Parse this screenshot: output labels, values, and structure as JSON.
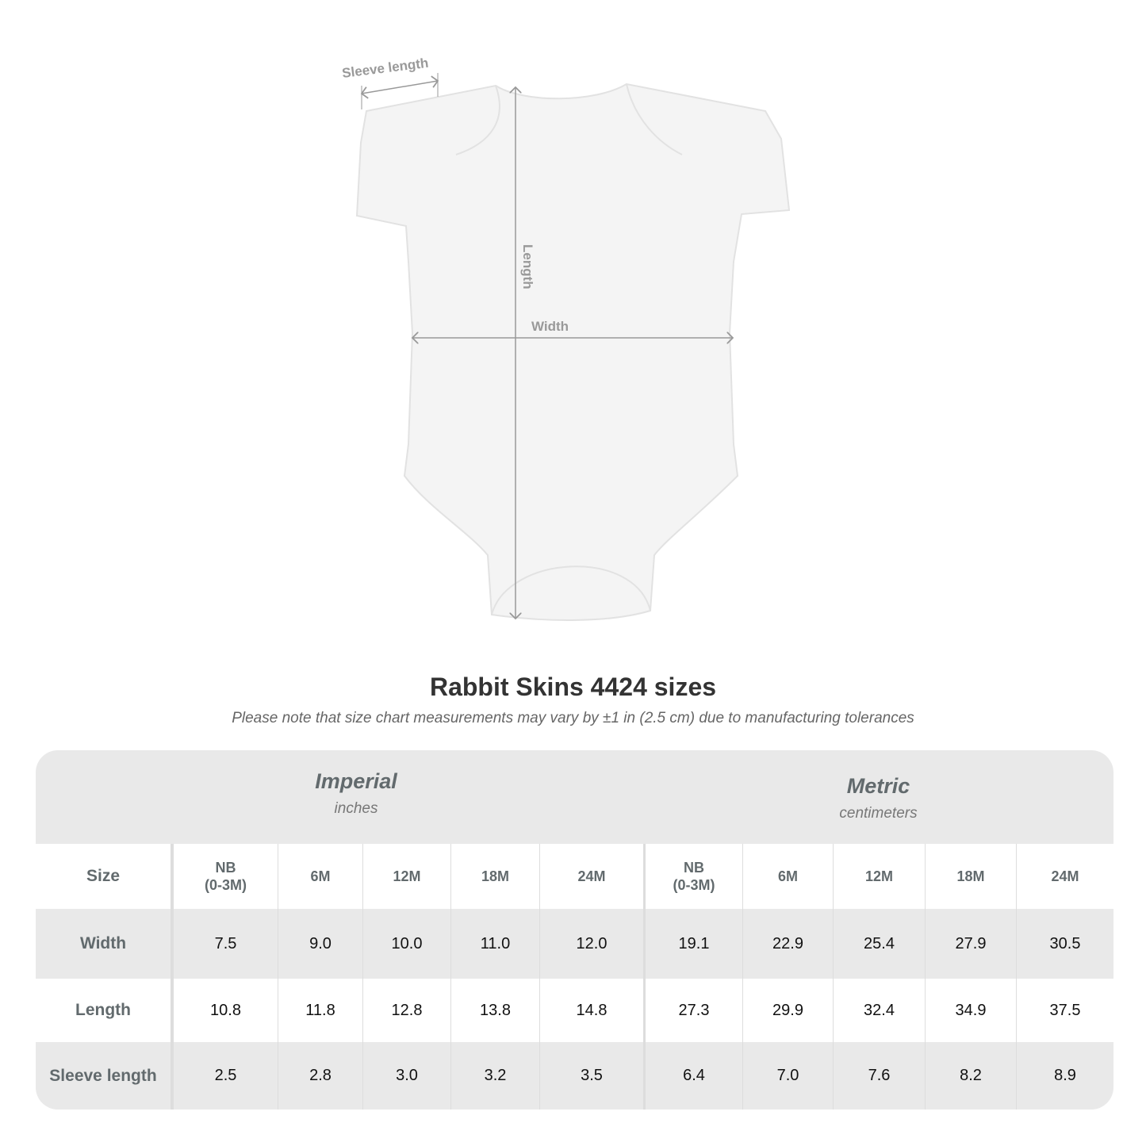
{
  "diagram": {
    "sleeve_label": "Sleeve length",
    "length_label": "Length",
    "width_label": "Width"
  },
  "title": "Rabbit Skins 4424 sizes",
  "subtitle": "Please note that size chart measurements may vary by ±1 in (2.5 cm) due to manufacturing tolerances",
  "imperial": {
    "name": "Imperial",
    "unit": "inches"
  },
  "metric": {
    "name": "Metric",
    "unit": "centimeters"
  },
  "rows": [
    {
      "label": "Size",
      "values": [
        "NB\n(0-3M)",
        "6M",
        "12M",
        "18M",
        "24M",
        "NB\n(0-3M)",
        "6M",
        "12M",
        "18M",
        "24M"
      ]
    },
    {
      "label": "Width",
      "values": [
        "7.5",
        "9.0",
        "10.0",
        "11.0",
        "12.0",
        "19.1",
        "22.9",
        "25.4",
        "27.9",
        "30.5"
      ]
    },
    {
      "label": "Length",
      "values": [
        "10.8",
        "11.8",
        "12.8",
        "13.8",
        "14.8",
        "27.3",
        "29.9",
        "32.4",
        "34.9",
        "37.5"
      ]
    },
    {
      "label": "Sleeve length",
      "values": [
        "2.5",
        "2.8",
        "3.0",
        "3.2",
        "3.5",
        "6.4",
        "7.0",
        "7.6",
        "8.2",
        "8.9"
      ]
    }
  ]
}
